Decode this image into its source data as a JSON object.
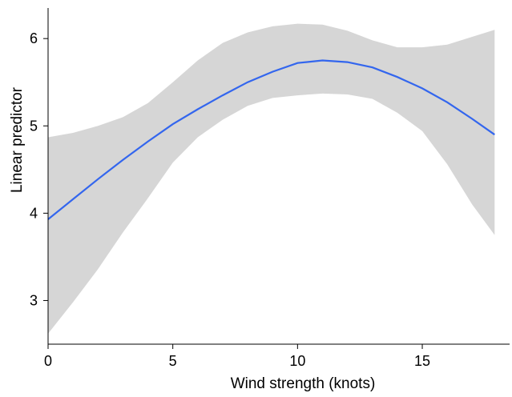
{
  "chart_data": {
    "type": "line",
    "xlabel": "Wind strength (knots)",
    "ylabel": "Linear predictor",
    "xlim": [
      0,
      18.5
    ],
    "ylim": [
      2.5,
      6.35
    ],
    "xticks": [
      0,
      5,
      10,
      15
    ],
    "yticks": [
      3,
      4,
      5,
      6
    ],
    "grid": false,
    "colors": {
      "line": "#3366ee",
      "band": "#d6d6d6"
    },
    "series": [
      {
        "x": [
          0,
          1,
          2,
          3,
          4,
          5,
          6,
          7,
          8,
          9,
          10,
          11,
          12,
          13,
          14,
          15,
          16,
          17,
          17.9
        ],
        "y": [
          3.93,
          4.16,
          4.39,
          4.61,
          4.82,
          5.02,
          5.19,
          5.35,
          5.5,
          5.62,
          5.72,
          5.75,
          5.73,
          5.67,
          5.56,
          5.43,
          5.27,
          5.08,
          4.9
        ],
        "lower": [
          2.62,
          2.98,
          3.36,
          3.78,
          4.17,
          4.58,
          4.87,
          5.07,
          5.23,
          5.32,
          5.35,
          5.37,
          5.36,
          5.31,
          5.15,
          4.94,
          4.56,
          4.1,
          3.75
        ],
        "upper": [
          4.87,
          4.92,
          5.0,
          5.1,
          5.26,
          5.5,
          5.75,
          5.95,
          6.07,
          6.14,
          6.17,
          6.16,
          6.09,
          5.98,
          5.9,
          5.9,
          5.93,
          6.02,
          6.1
        ]
      }
    ]
  }
}
